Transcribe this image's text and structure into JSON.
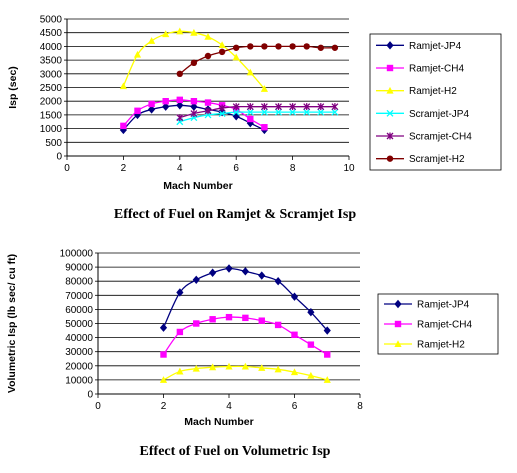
{
  "chart_data": [
    {
      "type": "line",
      "title": "",
      "caption": "Effect of Fuel on Ramjet & Scramjet Isp",
      "xlabel": "Mach Number",
      "ylabel": "Isp (sec)",
      "xlim": [
        0,
        10
      ],
      "ylim": [
        0,
        5000
      ],
      "xticks": [
        0,
        2,
        4,
        6,
        8,
        10
      ],
      "yticks": [
        0,
        500,
        1000,
        1500,
        2000,
        2500,
        3000,
        3500,
        4000,
        4500,
        5000
      ],
      "grid": "horizontal",
      "legend": "right",
      "series": [
        {
          "name": "Ramjet-JP4",
          "color": "#000080",
          "marker": "diamond",
          "x": [
            2,
            2.5,
            3,
            3.5,
            4,
            4.5,
            5,
            5.5,
            6,
            6.5,
            7
          ],
          "y": [
            950,
            1500,
            1700,
            1800,
            1850,
            1800,
            1700,
            1600,
            1450,
            1200,
            950
          ]
        },
        {
          "name": "Ramjet-CH4",
          "color": "#FF00FF",
          "marker": "square",
          "x": [
            2,
            2.5,
            3,
            3.5,
            4,
            4.5,
            5,
            5.5,
            6,
            6.5,
            7
          ],
          "y": [
            1100,
            1650,
            1900,
            2000,
            2050,
            2000,
            1950,
            1850,
            1700,
            1350,
            1050
          ]
        },
        {
          "name": "Ramjet-H2",
          "color": "#FFFF00",
          "marker": "triangle",
          "x": [
            2,
            2.5,
            3,
            3.5,
            4,
            4.5,
            5,
            5.5,
            6,
            6.5,
            7
          ],
          "y": [
            2550,
            3700,
            4200,
            4450,
            4550,
            4500,
            4350,
            4050,
            3600,
            3050,
            2450
          ]
        },
        {
          "name": "Scramjet-JP4",
          "color": "#00FFFF",
          "marker": "x",
          "x": [
            4,
            4.5,
            5,
            5.5,
            6,
            6.5,
            7,
            7.5,
            8,
            8.5,
            9,
            9.5
          ],
          "y": [
            1250,
            1400,
            1500,
            1550,
            1600,
            1600,
            1600,
            1600,
            1600,
            1600,
            1600,
            1600
          ]
        },
        {
          "name": "Scramjet-CH4",
          "color": "#800080",
          "marker": "star",
          "x": [
            4,
            4.5,
            5,
            5.5,
            6,
            6.5,
            7,
            7.5,
            8,
            8.5,
            9,
            9.5
          ],
          "y": [
            1400,
            1550,
            1650,
            1750,
            1800,
            1800,
            1800,
            1800,
            1800,
            1800,
            1800,
            1800
          ]
        },
        {
          "name": "Scramjet-H2",
          "color": "#800000",
          "marker": "circle",
          "x": [
            4,
            4.5,
            5,
            5.5,
            6,
            6.5,
            7,
            7.5,
            8,
            8.5,
            9,
            9.5
          ],
          "y": [
            3000,
            3400,
            3650,
            3800,
            3950,
            4000,
            4000,
            4000,
            4000,
            4000,
            3950,
            3950
          ]
        }
      ]
    },
    {
      "type": "line",
      "title": "",
      "caption": "Effect of Fuel on Volumetric Isp",
      "xlabel": "Mach Number",
      "ylabel": "Volumetric Isp (lb sec/ cu ft)",
      "xlim": [
        0,
        8
      ],
      "ylim": [
        0,
        100000
      ],
      "xticks": [
        0,
        2,
        4,
        6,
        8
      ],
      "yticks": [
        0,
        10000,
        20000,
        30000,
        40000,
        50000,
        60000,
        70000,
        80000,
        90000,
        100000
      ],
      "grid": "horizontal",
      "legend": "right",
      "series": [
        {
          "name": "Ramjet-JP4",
          "color": "#000080",
          "marker": "diamond",
          "x": [
            2,
            2.5,
            3,
            3.5,
            4,
            4.5,
            5,
            5.5,
            6,
            6.5,
            7
          ],
          "y": [
            47000,
            72000,
            81000,
            86000,
            89000,
            87000,
            84000,
            80000,
            69000,
            58000,
            45000
          ]
        },
        {
          "name": "Ramjet-CH4",
          "color": "#FF00FF",
          "marker": "square",
          "x": [
            2,
            2.5,
            3,
            3.5,
            4,
            4.5,
            5,
            5.5,
            6,
            6.5,
            7
          ],
          "y": [
            28000,
            44000,
            50000,
            53000,
            54500,
            54000,
            52000,
            49000,
            42000,
            35000,
            28000
          ]
        },
        {
          "name": "Ramjet-H2",
          "color": "#FFFF00",
          "marker": "triangle",
          "x": [
            2,
            2.5,
            3,
            3.5,
            4,
            4.5,
            5,
            5.5,
            6,
            6.5,
            7
          ],
          "y": [
            10000,
            16000,
            18000,
            19000,
            19500,
            19500,
            18500,
            17500,
            15500,
            13000,
            10000
          ]
        }
      ]
    }
  ]
}
